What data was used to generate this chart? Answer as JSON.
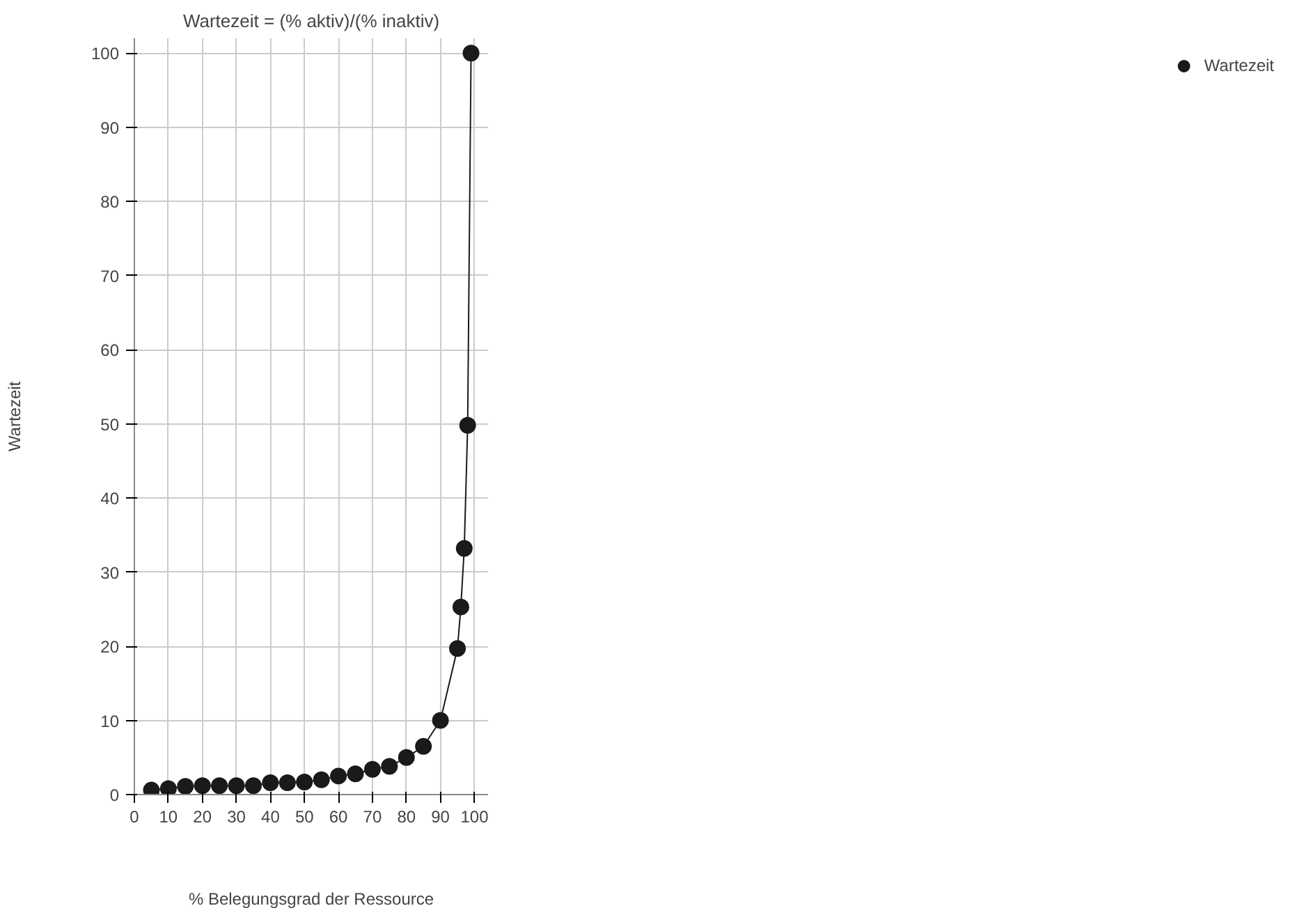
{
  "chart_data": {
    "type": "line",
    "title": "Wartezeit = (% aktiv)/(% inaktiv)",
    "xlabel": "% Belegungsgrad der Ressource",
    "ylabel": "Wartezeit",
    "x": [
      5,
      10,
      15,
      20,
      25,
      30,
      35,
      40,
      45,
      50,
      55,
      60,
      65,
      70,
      75,
      80,
      85,
      90,
      95,
      96,
      97,
      98,
      99
    ],
    "series": [
      {
        "name": "Wartezeit",
        "color": "#1a1a1a",
        "values": [
          0.6,
          0.8,
          1.1,
          1.2,
          1.2,
          1.2,
          1.2,
          1.6,
          1.6,
          1.7,
          2,
          2.5,
          2.8,
          3.4,
          3.8,
          5,
          6.5,
          10,
          19.7,
          25.3,
          33.2,
          49.8,
          100
        ]
      }
    ],
    "xlim": [
      0,
      104
    ],
    "ylim": [
      0,
      102
    ],
    "xticks": [
      0,
      10,
      20,
      30,
      40,
      50,
      60,
      70,
      80,
      90,
      100
    ],
    "yticks": [
      0,
      10,
      20,
      30,
      40,
      50,
      60,
      70,
      80,
      90,
      100
    ],
    "grid": true,
    "legend": "right",
    "marker": "circle",
    "line_style": "solid"
  }
}
